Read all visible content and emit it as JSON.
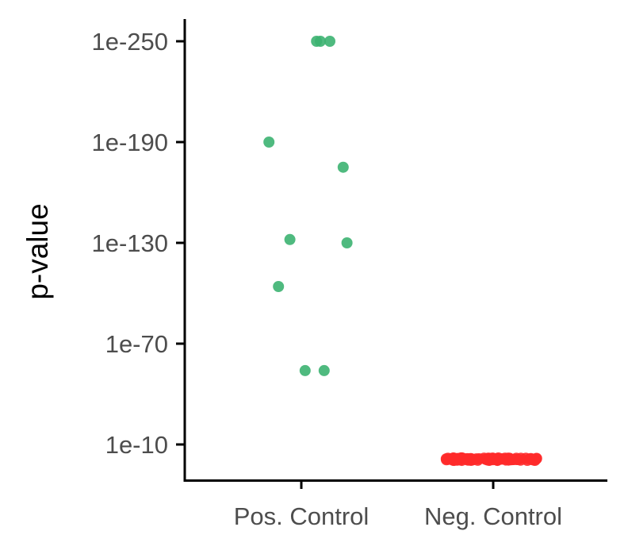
{
  "chart_data": {
    "type": "scatter",
    "title": "",
    "xlabel": "",
    "ylabel": "p-value",
    "categories": [
      "Pos. Control",
      "Neg. Control"
    ],
    "y_scale": "log10 (reversed: smaller p-values plotted higher)",
    "y_ticks": [
      "1e-250",
      "1e-190",
      "1e-130",
      "1e-70",
      "1e-10"
    ],
    "y_tick_exponents": [
      -250,
      -190,
      -130,
      -70,
      -10
    ],
    "ylim_exponent": [
      -1,
      -275
    ],
    "grid": false,
    "legend": "none",
    "colors": {
      "Pos. Control": "#3cb371",
      "Neg. Control": "#ff2a2a"
    },
    "series": [
      {
        "category": "Pos. Control",
        "points": [
          {
            "offset": 0.08,
            "y_exp": -250
          },
          {
            "offset": 0.1,
            "y_exp": -250
          },
          {
            "offset": 0.15,
            "y_exp": -250
          },
          {
            "offset": -0.17,
            "y_exp": -190
          },
          {
            "offset": 0.22,
            "y_exp": -175
          },
          {
            "offset": -0.06,
            "y_exp": -132
          },
          {
            "offset": 0.24,
            "y_exp": -130
          },
          {
            "offset": -0.12,
            "y_exp": -104
          },
          {
            "offset": 0.02,
            "y_exp": -54
          },
          {
            "offset": 0.12,
            "y_exp": -54
          }
        ]
      },
      {
        "category": "Neg. Control",
        "points_note": "dense cluster of many overlapping points near p ≈ 1",
        "count": 90,
        "y_exp_range": [
          -2,
          -0.5
        ],
        "offset_range": [
          -0.25,
          0.25
        ]
      }
    ]
  }
}
